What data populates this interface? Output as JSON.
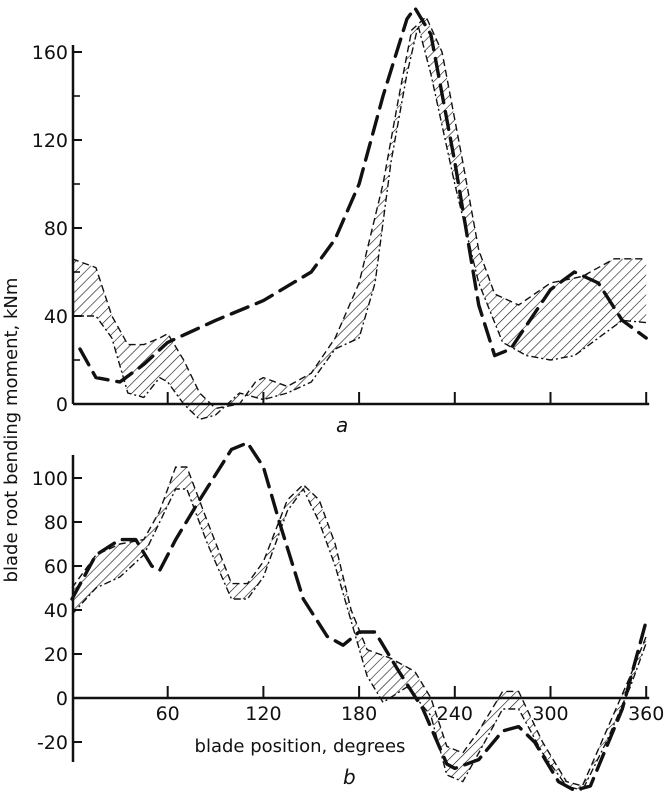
{
  "chart_data": [
    {
      "type": "line",
      "panel_label": "a",
      "xlabel": "",
      "ylabel": "blade root bending moment, kNm",
      "xlim": [
        0,
        360
      ],
      "ylim": [
        -10,
        180
      ],
      "y_ticks": [
        0,
        40,
        80,
        120,
        160
      ],
      "y_minor_ticks": [
        20,
        60,
        100,
        140
      ],
      "x_ticks": [
        60,
        120,
        180,
        240,
        300,
        360
      ],
      "grid": false,
      "series": [
        {
          "style": "heavy-dashed",
          "x": [
            5,
            15,
            30,
            45,
            60,
            90,
            120,
            150,
            165,
            180,
            195,
            210,
            215,
            225,
            240,
            255,
            265,
            275,
            300,
            315,
            330,
            345,
            360
          ],
          "y": [
            25,
            12,
            10,
            18,
            28,
            38,
            47,
            60,
            75,
            100,
            140,
            175,
            180,
            168,
            110,
            45,
            22,
            25,
            52,
            60,
            55,
            38,
            30
          ]
        }
      ],
      "bands": [
        {
          "style": "hatched",
          "upper": {
            "x": [
              0,
              15,
              25,
              35,
              45,
              55,
              60,
              70,
              80,
              90,
              105,
              115,
              120,
              135,
              150,
              165,
              180,
              195,
              205,
              213,
              222,
              232,
              245,
              255,
              265,
              280,
              300,
              320,
              340,
              360
            ],
            "y": [
              66,
              62,
              40,
              27,
              27,
              30,
              32,
              20,
              5,
              -2,
              0,
              10,
              12,
              8,
              14,
              30,
              55,
              100,
              140,
              170,
              176,
              160,
              110,
              70,
              50,
              45,
              55,
              58,
              66,
              66
            ]
          },
          "lower": {
            "x": [
              0,
              15,
              25,
              35,
              45,
              55,
              60,
              70,
              80,
              90,
              105,
              120,
              135,
              150,
              165,
              180,
              190,
              200,
              210,
              217,
              225,
              240,
              255,
              270,
              285,
              300,
              315,
              330,
              345,
              360
            ],
            "y": [
              40,
              40,
              30,
              5,
              3,
              12,
              10,
              0,
              -7,
              -5,
              5,
              2,
              5,
              10,
              25,
              30,
              55,
              110,
              150,
              172,
              150,
              100,
              55,
              28,
              22,
              20,
              22,
              30,
              38,
              37
            ]
          }
        }
      ]
    },
    {
      "type": "line",
      "panel_label": "b",
      "xlabel": "blade position, degrees",
      "ylabel": "blade root bending moment, kNm",
      "xlim": [
        0,
        360
      ],
      "ylim": [
        -45,
        120
      ],
      "y_ticks": [
        -20,
        0,
        20,
        40,
        60,
        80,
        100
      ],
      "x_ticks": [
        60,
        120,
        180,
        240,
        300,
        360
      ],
      "grid": false,
      "series": [
        {
          "style": "heavy-dashed",
          "x": [
            0,
            15,
            30,
            40,
            50,
            55,
            65,
            80,
            100,
            110,
            120,
            130,
            145,
            160,
            170,
            180,
            190,
            205,
            220,
            235,
            240,
            255,
            270,
            280,
            290,
            305,
            315,
            325,
            345,
            360
          ],
          "y": [
            45,
            65,
            72,
            72,
            60,
            58,
            72,
            90,
            113,
            116,
            105,
            80,
            45,
            28,
            24,
            30,
            30,
            12,
            -5,
            -30,
            -32,
            -28,
            -15,
            -13,
            -20,
            -38,
            -42,
            -40,
            -5,
            35
          ]
        }
      ],
      "bands": [
        {
          "style": "hatched",
          "upper": {
            "x": [
              0,
              15,
              30,
              45,
              55,
              65,
              72,
              85,
              100,
              110,
              120,
              135,
              145,
              155,
              165,
              175,
              185,
              200,
              215,
              225,
              235,
              245,
              255,
              270,
              280,
              295,
              310,
              320,
              335,
              350,
              360
            ],
            "y": [
              50,
              65,
              70,
              72,
              85,
              105,
              105,
              80,
              52,
              52,
              62,
              90,
              97,
              90,
              70,
              40,
              22,
              18,
              12,
              0,
              -22,
              -25,
              -15,
              3,
              3,
              -20,
              -38,
              -40,
              -15,
              10,
              28
            ]
          },
          "lower": {
            "x": [
              0,
              15,
              30,
              45,
              55,
              65,
              72,
              85,
              100,
              110,
              120,
              135,
              145,
              155,
              165,
              175,
              185,
              195,
              210,
              225,
              235,
              245,
              255,
              270,
              280,
              295,
              310,
              320,
              335,
              350,
              360
            ],
            "y": [
              38,
              50,
              55,
              65,
              80,
              95,
              95,
              70,
              45,
              45,
              55,
              85,
              95,
              80,
              60,
              35,
              10,
              -2,
              5,
              -8,
              -35,
              -38,
              -25,
              -5,
              -5,
              -25,
              -40,
              -42,
              -20,
              5,
              25
            ]
          }
        }
      ]
    }
  ]
}
